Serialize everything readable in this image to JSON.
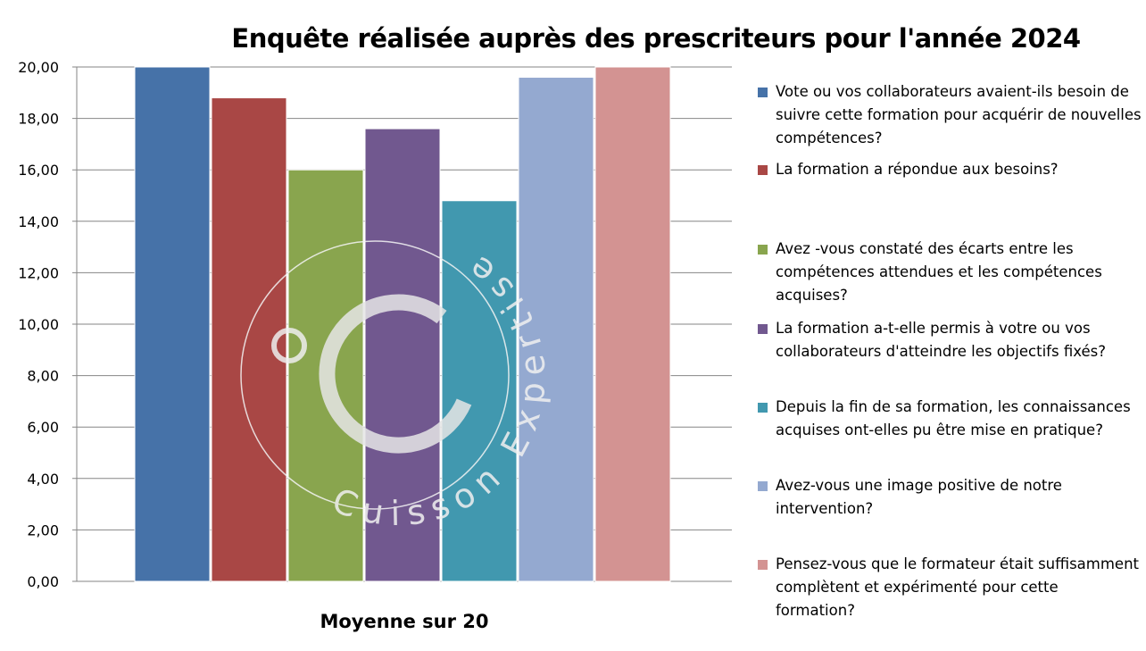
{
  "chart_data": {
    "type": "bar",
    "title": "Enquête réalisée auprès des  prescriteurs pour l'année 2024",
    "xlabel": "Moyenne sur 20",
    "ylabel": "",
    "ylim": [
      0,
      20
    ],
    "yticks": [
      "0,00",
      "2,00",
      "4,00",
      "6,00",
      "8,00",
      "10,00",
      "12,00",
      "14,00",
      "16,00",
      "18,00",
      "20,00"
    ],
    "grid": true,
    "legend_position": "right",
    "categories": [
      "Moyenne sur 20"
    ],
    "series": [
      {
        "name": "Vote  ou vos collaborateurs avaient-ils besoin de suivre cette formation pour acquérir de nouvelles compétences?",
        "values": [
          20.0
        ],
        "color": "#4672A8"
      },
      {
        "name": "La formation a répondue aux besoins?",
        "values": [
          18.8
        ],
        "color": "#A94745"
      },
      {
        "name": "Avez -vous constaté des écarts entre les compétences attendues et les compétences acquises?",
        "values": [
          16.0
        ],
        "color": "#89A54E"
      },
      {
        "name": "La formation a-t-elle permis à votre ou vos collaborateurs d'atteindre les objectifs fixés?",
        "values": [
          17.6
        ],
        "color": "#71588F"
      },
      {
        "name": "Depuis la fin de sa formation, les connaissances acquises ont-elles pu être mise en pratique?",
        "values": [
          14.8
        ],
        "color": "#4198AF"
      },
      {
        "name": "Avez-vous une image positive de notre intervention?",
        "values": [
          19.6
        ],
        "color": "#94A9D0"
      },
      {
        "name": "Pensez-vous que le formateur était suffisamment complètent et expérimenté pour cette formation?",
        "values": [
          20.0
        ],
        "color": "#D39392"
      }
    ]
  },
  "watermark": {
    "text": "Cuisson Expertise"
  }
}
